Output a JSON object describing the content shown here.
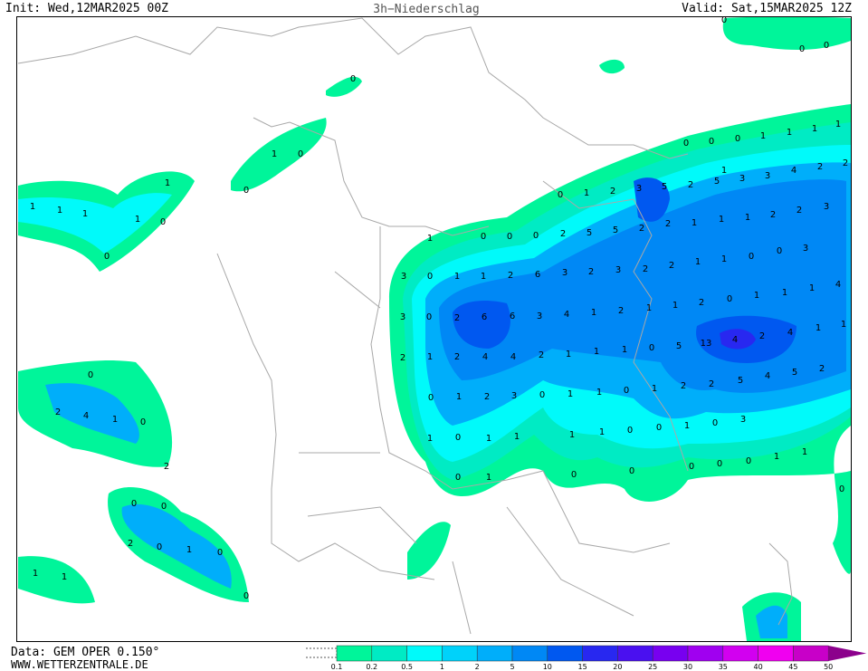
{
  "header": {
    "init": "Init: Wed,12MAR2025 00Z",
    "title": "3h−Niederschlag",
    "valid": "Valid: Sat,15MAR2025 12Z"
  },
  "footer": {
    "data": "Data: GEM OPER 0.150°",
    "site": "WWW.WETTERZENTRALE.DE"
  },
  "legend": {
    "ticks": [
      0.1,
      0.2,
      0.5,
      1,
      2,
      5,
      10,
      15,
      20,
      25,
      30,
      35,
      40,
      45,
      50
    ],
    "colors": [
      "#00f59a",
      "#00ebc4",
      "#00fafa",
      "#00d2fa",
      "#00aefa",
      "#0088f5",
      "#0058f0",
      "#2828f0",
      "#4a10f0",
      "#7800f0",
      "#a000f0",
      "#d200f0",
      "#f000f0",
      "#c800c8",
      "#8c008c"
    ]
  },
  "map_labels": [
    0,
    0,
    0,
    0,
    1,
    0,
    0,
    1,
    1,
    0,
    0,
    1,
    1,
    1,
    0,
    0,
    0,
    1,
    1,
    1,
    1,
    1,
    2,
    2,
    4,
    3,
    3,
    5,
    2,
    5,
    3,
    2,
    1,
    0,
    1,
    2,
    2,
    5,
    5,
    2,
    0,
    0,
    0,
    1,
    1,
    1,
    2,
    2,
    3,
    2,
    1,
    1,
    0,
    0,
    3,
    2,
    3,
    2,
    3,
    6,
    2,
    1,
    1,
    0,
    3,
    1,
    1,
    2,
    0,
    1,
    1,
    1,
    4,
    2,
    1,
    4,
    3,
    6,
    6,
    2,
    0,
    3,
    5,
    13,
    4,
    2,
    4,
    1,
    1,
    0,
    1,
    1,
    1,
    2,
    4,
    4,
    2,
    1,
    2,
    2,
    5,
    4,
    5,
    2,
    2,
    1,
    0,
    1,
    1,
    0,
    3,
    2,
    1,
    0,
    3,
    0,
    1,
    0,
    0,
    1,
    1,
    1,
    1,
    0,
    1,
    1,
    1,
    0,
    0,
    0,
    0,
    0,
    1,
    0,
    0,
    0,
    2,
    4,
    1,
    0,
    2,
    0,
    0,
    2,
    0,
    1,
    0,
    0,
    1,
    1
  ]
}
